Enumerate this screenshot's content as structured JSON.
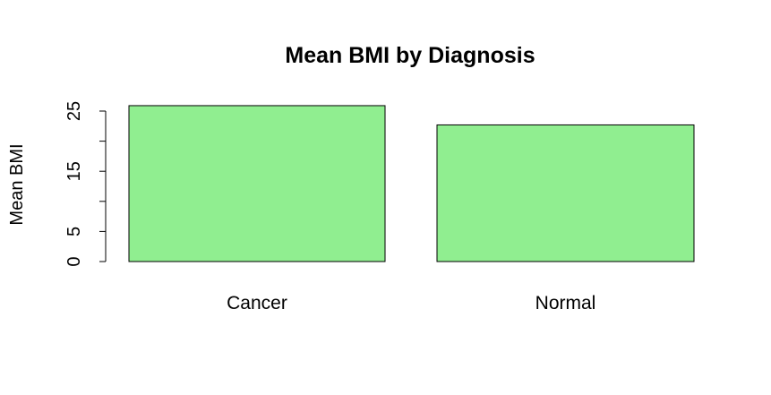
{
  "chart_data": {
    "type": "bar",
    "title": "Mean BMI by Diagnosis",
    "xlabel": "",
    "ylabel": "Mean BMI",
    "categories": [
      "Cancer",
      "Normal"
    ],
    "values": [
      25.9,
      22.7
    ],
    "ylim": [
      0,
      25
    ],
    "y_ticks": [
      0,
      5,
      10,
      15,
      20,
      25
    ],
    "y_tick_labels": [
      "0",
      "5",
      "",
      "15",
      "",
      "25"
    ],
    "bar_color": "#90ee90",
    "grid": false,
    "legend": "none"
  }
}
